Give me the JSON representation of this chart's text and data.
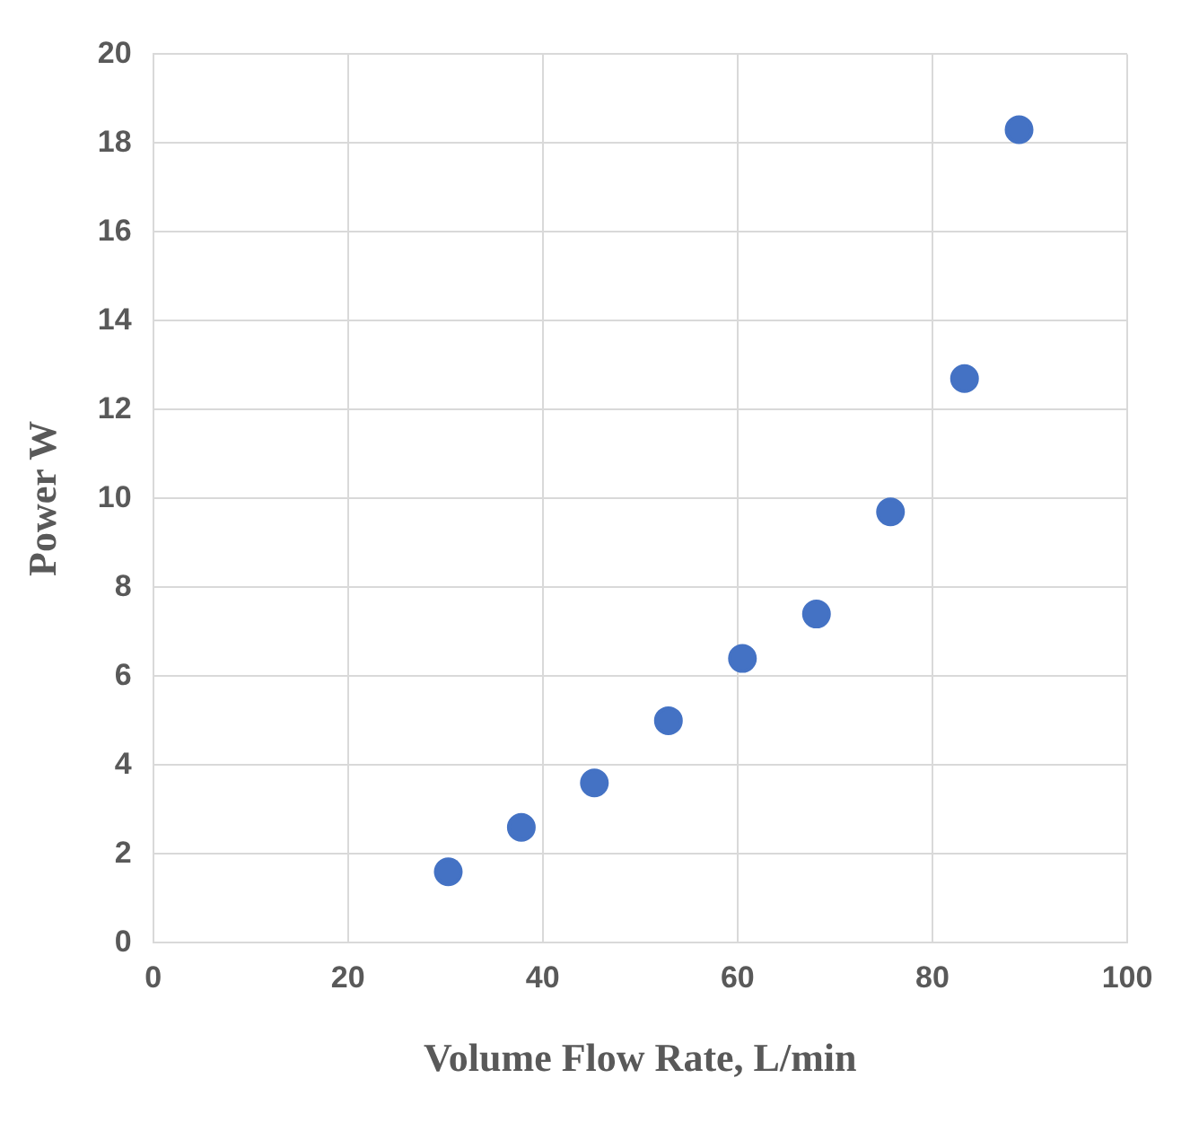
{
  "chart_data": {
    "type": "scatter",
    "xlabel": "Volume Flow Rate, L/min",
    "ylabel": "Power W",
    "x": [
      30.3,
      37.8,
      45.3,
      52.9,
      60.5,
      68.1,
      75.7,
      83.3,
      88.9
    ],
    "series": [
      {
        "color": "#4472c4",
        "values": [
          1.6,
          2.6,
          3.6,
          5.0,
          6.4,
          7.4,
          9.7,
          12.7,
          18.3
        ]
      }
    ],
    "xlim": [
      0,
      100
    ],
    "xticks": [
      0,
      20,
      40,
      60,
      80,
      100
    ],
    "ylim": [
      0,
      20
    ],
    "yticks": [
      0,
      2,
      4,
      6,
      8,
      10,
      12,
      14,
      16,
      18,
      20
    ],
    "grid": true,
    "legend": false,
    "marker": "circle"
  }
}
